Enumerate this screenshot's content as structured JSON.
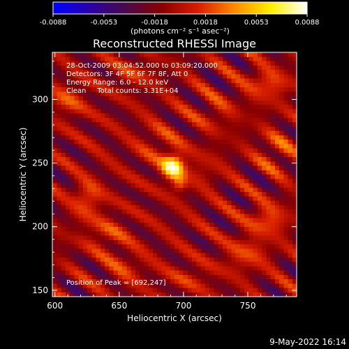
{
  "chart_data": {
    "type": "heatmap",
    "title": "Reconstructed RHESSI Image",
    "xlabel": "Heliocentric X (arcsec)",
    "ylabel": "Heliocentric Y (arcsec)",
    "xlim": [
      598,
      788
    ],
    "ylim": [
      145,
      337
    ],
    "xticks": [
      600,
      650,
      700,
      750
    ],
    "yticks": [
      150,
      200,
      250,
      300
    ],
    "colorbar": {
      "label": "(photons cm⁻² s⁻¹ asec⁻²)",
      "range": [
        -0.0088,
        0.0088
      ],
      "ticks": [
        "-0.0088",
        "-0.0053",
        "-0.0018",
        "0.0018",
        "0.0053",
        "0.0088"
      ],
      "stops": [
        "#0000ff",
        "#2a00a8",
        "#4a0a4a",
        "#8a0000",
        "#d81e00",
        "#ff8a00",
        "#ffee00",
        "#ffffff"
      ]
    },
    "info": [
      "28-Oct-2009 03:04:52.000 to 03:09:20.000",
      "Detectors: 3F 4F 5F 6F 7F 8F, Att 0",
      "Energy Range: 6.0 - 12.0 keV",
      "Clean     Total counts: 3.31E+04"
    ],
    "peak_label": "Position of Peak = [692,247]",
    "peak": [
      692,
      247
    ],
    "sources": [
      {
        "x": 692,
        "y": 247,
        "sx": 6,
        "sy": 7,
        "amp": 0.0088
      },
      {
        "x": 697,
        "y": 233,
        "sx": 4,
        "sy": 4,
        "amp": 0.0035
      },
      {
        "x": 680,
        "y": 265,
        "sx": 12,
        "sy": 12,
        "amp": 0.0016
      },
      {
        "x": 715,
        "y": 245,
        "sx": 10,
        "sy": 10,
        "amp": 0.0014
      },
      {
        "x": 625,
        "y": 222,
        "sx": 8,
        "sy": 10,
        "amp": 0.0034
      },
      {
        "x": 765,
        "y": 205,
        "sx": 11,
        "sy": 9,
        "amp": 0.0034
      },
      {
        "x": 748,
        "y": 178,
        "sx": 12,
        "sy": 9,
        "amp": 0.0028
      },
      {
        "x": 765,
        "y": 312,
        "sx": 12,
        "sy": 9,
        "amp": 0.0032
      },
      {
        "x": 610,
        "y": 300,
        "sx": 10,
        "sy": 10,
        "amp": 0.0026
      },
      {
        "x": 660,
        "y": 320,
        "sx": 12,
        "sy": 8,
        "amp": 0.002
      },
      {
        "x": 640,
        "y": 195,
        "sx": 12,
        "sy": 10,
        "amp": 0.0022
      },
      {
        "x": 655,
        "y": 168,
        "sx": 12,
        "sy": 9,
        "amp": 0.0018
      },
      {
        "x": 772,
        "y": 260,
        "sx": 10,
        "sy": 12,
        "amp": 0.002
      },
      {
        "x": 725,
        "y": 290,
        "sx": 12,
        "sy": 10,
        "amp": 0.0016
      },
      {
        "x": 705,
        "y": 160,
        "sx": 14,
        "sy": 8,
        "amp": 0.0016
      }
    ],
    "stripe": {
      "period_arcsec": 22,
      "angle_deg": 35,
      "amp": 0.0027
    }
  },
  "footer": {
    "timestamp": "9-May-2022 16:14"
  }
}
